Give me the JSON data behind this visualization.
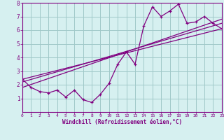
{
  "title": "",
  "xlabel": "Windchill (Refroidissement éolien,°C)",
  "bg_color": "#d6f0f0",
  "line_color": "#800080",
  "grid_color": "#a0c8c8",
  "axis_color": "#800080",
  "tick_color": "#800080",
  "xmin": 0,
  "xmax": 23,
  "ymin": 0,
  "ymax": 8,
  "xticks": [
    0,
    1,
    2,
    3,
    4,
    5,
    6,
    7,
    8,
    9,
    10,
    11,
    12,
    13,
    14,
    15,
    16,
    17,
    18,
    19,
    20,
    21,
    22,
    23
  ],
  "yticks": [
    1,
    2,
    3,
    4,
    5,
    6,
    7,
    8
  ],
  "jagged_x": [
    0,
    1,
    2,
    3,
    4,
    5,
    6,
    7,
    8,
    9,
    10,
    11,
    12,
    13,
    14,
    15,
    16,
    17,
    18,
    19,
    20,
    21,
    22,
    23
  ],
  "jagged_y": [
    2.4,
    1.8,
    1.5,
    1.4,
    1.6,
    1.1,
    1.6,
    0.9,
    0.7,
    1.3,
    2.1,
    3.5,
    4.4,
    3.5,
    6.3,
    7.7,
    7.0,
    7.4,
    7.9,
    6.5,
    6.6,
    7.0,
    6.5,
    6.1
  ],
  "line1_x": [
    0,
    23
  ],
  "line1_y": [
    2.4,
    6.1
  ],
  "line2_x": [
    0,
    23
  ],
  "line2_y": [
    2.2,
    6.5
  ],
  "line3_x": [
    0,
    23
  ],
  "line3_y": [
    1.8,
    6.8
  ]
}
